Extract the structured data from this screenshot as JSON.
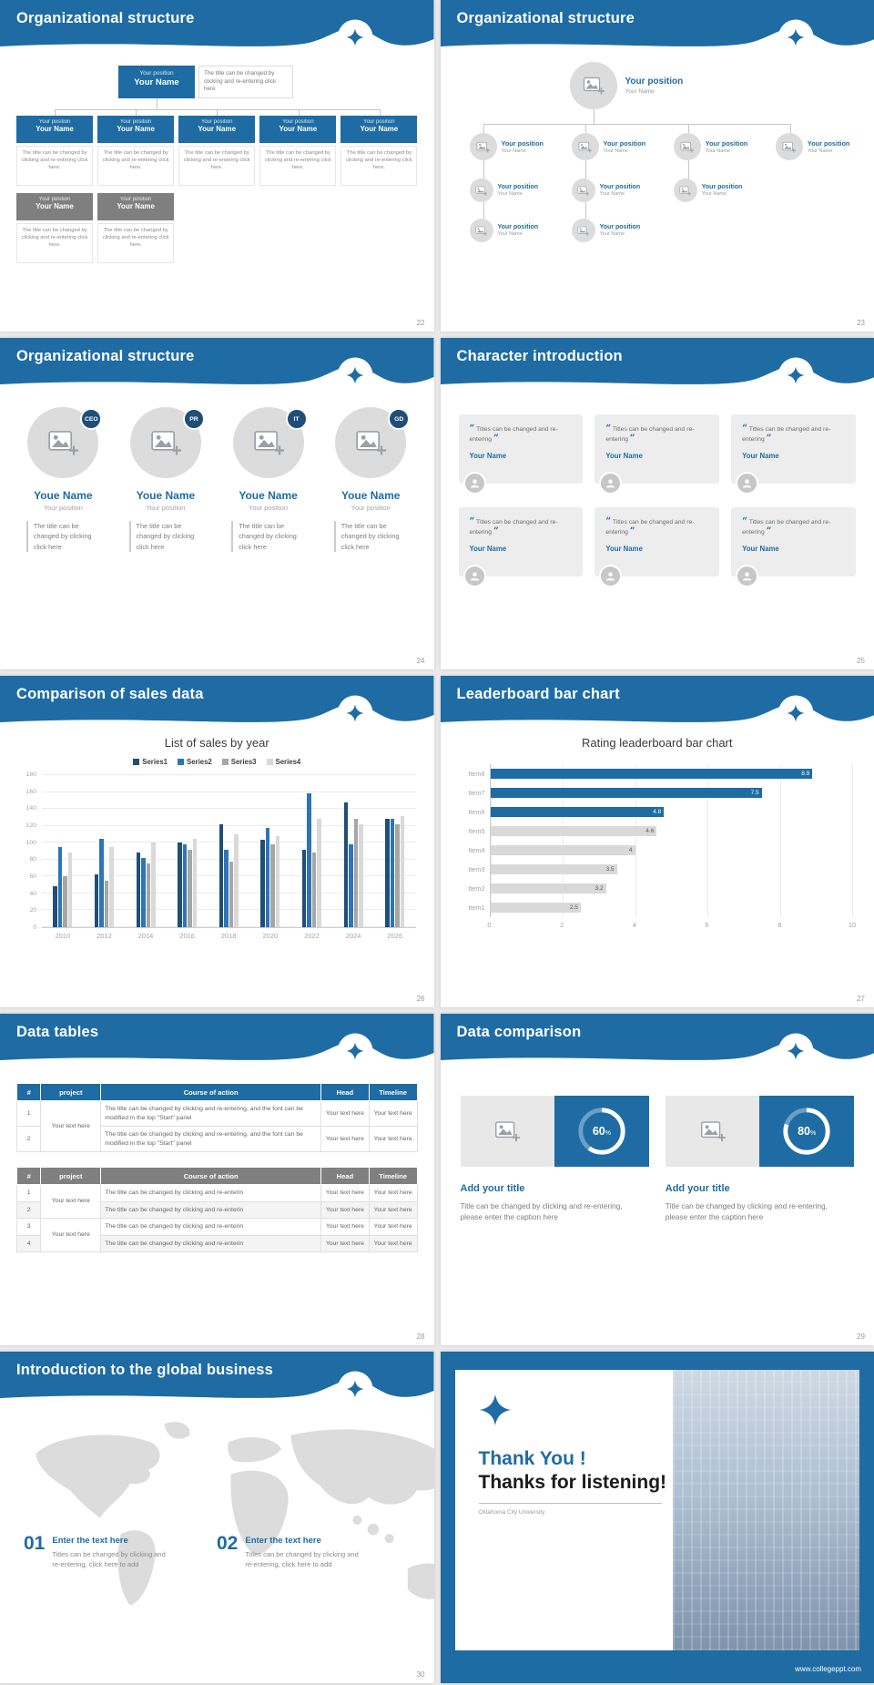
{
  "theme": {
    "primary": "#1e6ca3",
    "navy": "#1f4e79",
    "gray_header": "#808080"
  },
  "slide22": {
    "title": "Organizational structure",
    "page": "22",
    "root_position": "Your position",
    "root_name": "Your Name",
    "root_desc": "The title can be changed by clicking and re-entering click here",
    "child_position": "Your position",
    "child_name": "Your Name",
    "child_desc": "The title can be changed by clicking and re-entering click here."
  },
  "slide23": {
    "title": "Organizational structure",
    "page": "23",
    "root_position": "Your position",
    "root_name": "Your Name",
    "node_position": "Your position",
    "node_name": "Your Name"
  },
  "slide24": {
    "title": "Organizational structure",
    "page": "24",
    "badges": [
      "CEO",
      "PR",
      "IT",
      "GD"
    ],
    "name": "Youe Name",
    "position": "Your position",
    "desc": "The title can be changed by clicking click here"
  },
  "slide25": {
    "title": "Character introduction",
    "page": "25",
    "open_quote": "“",
    "close_quote": "”",
    "quote": "Titles can be changed and re-entering",
    "name": "Your Name"
  },
  "slide26": {
    "title": "Comparison of sales data",
    "page": "26"
  },
  "slide27": {
    "title": "Leaderboard bar chart",
    "page": "27"
  },
  "slide28": {
    "title": "Data tables",
    "page": "28",
    "table1": {
      "headers": [
        "#",
        "project",
        "Course of action",
        "Head",
        "Timeline"
      ],
      "project": "Your text here",
      "rows": [
        {
          "num": "1",
          "course": "The title can be changed by clicking and re-entering, and the font can be modified in the top \"Start\" panel",
          "head": "Your text here",
          "timeline": "Your text here"
        },
        {
          "num": "2",
          "course": "The title can be changed by clicking and re-entering, and the font can be modified in the top \"Start\" panel",
          "head": "Your text here",
          "timeline": "Your text here"
        }
      ]
    },
    "table2": {
      "headers": [
        "#",
        "project",
        "Course of action",
        "Head",
        "Timeline"
      ],
      "project_a": "Your text here",
      "project_b": "Your text here",
      "rows": [
        {
          "num": "1",
          "course": "The title can be changed by clicking and re-enterin",
          "head": "Your text here",
          "timeline": "Your text here"
        },
        {
          "num": "2",
          "course": "The title can be changed by clicking and re-enterin",
          "head": "Your text here",
          "timeline": "Your text here"
        },
        {
          "num": "3",
          "course": "The title can be changed by clicking and re-enterin",
          "head": "Your text here",
          "timeline": "Your text here"
        },
        {
          "num": "4",
          "course": "The title can be changed by clicking and re-enterin",
          "head": "Your text here",
          "timeline": "Your text here"
        }
      ]
    }
  },
  "slide29": {
    "title": "Data comparison",
    "page": "29",
    "percent_sign": "%",
    "cards": [
      {
        "percent": 60,
        "percent_label": "60",
        "heading": "Add your title",
        "caption": "Title can be changed by clicking and re-entering, please enter the caption here"
      },
      {
        "percent": 80,
        "percent_label": "80",
        "heading": "Add your title",
        "caption": "Title can be changed by clicking and re-entering, please enter the caption here"
      }
    ]
  },
  "slide30": {
    "title": "Introduction to the global business",
    "page": "30",
    "items": [
      {
        "num": "01",
        "heading": "Enter the text here",
        "body": "Titles can be changed by clicking and re-entering, click here to add"
      },
      {
        "num": "02",
        "heading": "Enter the text here",
        "body": "Titles can be changed by clicking and re-entering, click here to add"
      }
    ]
  },
  "slide_thanks": {
    "line1": "Thank You !",
    "line2": "Thanks for listening!",
    "org": "Oklahoma City University",
    "footer": "www.collegeppt.com"
  },
  "chart_data": [
    {
      "type": "bar",
      "title": "List of sales by year",
      "categories": [
        "2010",
        "2012",
        "2014",
        "2016",
        "2018",
        "2020",
        "2022",
        "2024",
        "2026"
      ],
      "series": [
        {
          "name": "Series1",
          "color": "#1f4e79",
          "values": [
            48,
            62,
            88,
            100,
            122,
            103,
            92,
            148,
            128
          ]
        },
        {
          "name": "Series2",
          "color": "#2e75b6",
          "values": [
            95,
            105,
            82,
            98,
            92,
            118,
            158,
            98,
            128
          ]
        },
        {
          "name": "Series3",
          "color": "#a6a6a6",
          "values": [
            60,
            55,
            75,
            92,
            78,
            98,
            88,
            128,
            122
          ]
        },
        {
          "name": "Series4",
          "color": "#d9d9d9",
          "values": [
            88,
            95,
            100,
            105,
            110,
            108,
            128,
            122,
            132
          ]
        }
      ],
      "xlabel": "",
      "ylabel": "",
      "ylim": [
        0,
        180
      ],
      "yticks": [
        0,
        20,
        40,
        60,
        80,
        100,
        120,
        140,
        160,
        180
      ],
      "legend_position": "top",
      "grid": true
    },
    {
      "type": "bar-horizontal",
      "title": "Rating leaderboard bar chart",
      "categories": [
        "Item8",
        "Item7",
        "Item6",
        "Item5",
        "Item4",
        "Item3",
        "Item2",
        "Item1"
      ],
      "values": [
        8.9,
        7.5,
        4.8,
        4.6,
        4,
        3.5,
        3.2,
        2.5
      ],
      "colors": [
        "#1e6ca3",
        "#1e6ca3",
        "#1e6ca3",
        "#d9d9d9",
        "#d9d9d9",
        "#d9d9d9",
        "#d9d9d9",
        "#d9d9d9"
      ],
      "label_colors": [
        "#ffffff",
        "#ffffff",
        "#ffffff",
        "#595959",
        "#595959",
        "#595959",
        "#595959",
        "#595959"
      ],
      "xlabel": "",
      "ylabel": "",
      "xlim": [
        0,
        10
      ],
      "xticks": [
        0,
        2,
        4,
        6,
        8,
        10
      ],
      "value_labels": true,
      "grid": true
    }
  ]
}
